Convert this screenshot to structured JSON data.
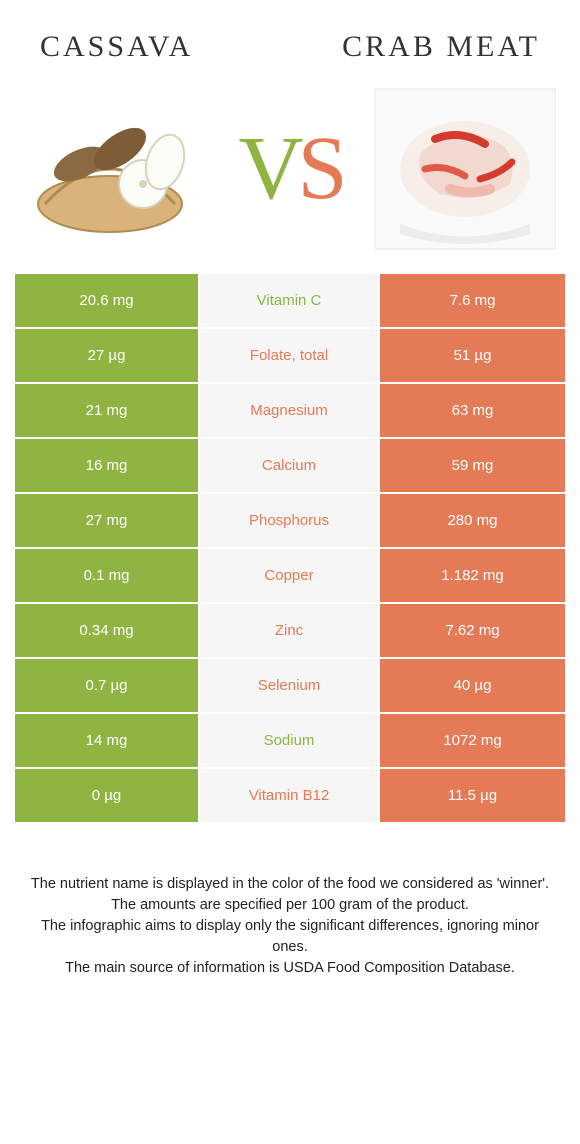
{
  "colors": {
    "left_fill": "#8fb441",
    "right_fill": "#e47a56",
    "mid_bg": "#f6f6f6",
    "left_text": "#ffffff",
    "right_text": "#ffffff",
    "nutrient_left_win": "#8fb441",
    "nutrient_right_win": "#e47a56"
  },
  "header": {
    "left": "cassava",
    "right": "crab meat"
  },
  "vs": {
    "v": "V",
    "s": "S"
  },
  "rows": [
    {
      "left": "20.6 mg",
      "name": "Vitamin C",
      "right": "7.6 mg",
      "winner": "left"
    },
    {
      "left": "27 µg",
      "name": "Folate, total",
      "right": "51 µg",
      "winner": "right"
    },
    {
      "left": "21 mg",
      "name": "Magnesium",
      "right": "63 mg",
      "winner": "right"
    },
    {
      "left": "16 mg",
      "name": "Calcium",
      "right": "59 mg",
      "winner": "right"
    },
    {
      "left": "27 mg",
      "name": "Phosphorus",
      "right": "280 mg",
      "winner": "right"
    },
    {
      "left": "0.1 mg",
      "name": "Copper",
      "right": "1.182 mg",
      "winner": "right"
    },
    {
      "left": "0.34 mg",
      "name": "Zinc",
      "right": "7.62 mg",
      "winner": "right"
    },
    {
      "left": "0.7 µg",
      "name": "Selenium",
      "right": "40 µg",
      "winner": "right"
    },
    {
      "left": "14 mg",
      "name": "Sodium",
      "right": "1072 mg",
      "winner": "left"
    },
    {
      "left": "0 µg",
      "name": "Vitamin B12",
      "right": "11.5 µg",
      "winner": "right"
    }
  ],
  "footer": {
    "l1": "The nutrient name is displayed in the color of the food we considered as 'winner'.",
    "l2": "The amounts are specified per 100 gram of the product.",
    "l3": "The infographic aims to display only the significant differences, ignoring minor ones.",
    "l4": "The main source of information is USDA Food Composition Database."
  }
}
